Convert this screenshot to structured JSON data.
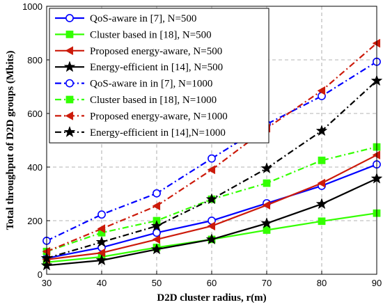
{
  "chart_data": {
    "type": "line",
    "xlabel": "D2D cluster radius, r(m)",
    "ylabel": "Total throughput of D2D groups (Mbits)",
    "xlim": [
      30,
      90
    ],
    "ylim": [
      0,
      1000
    ],
    "x_ticks": [
      30,
      40,
      50,
      60,
      70,
      80,
      90
    ],
    "y_ticks": [
      0,
      200,
      400,
      600,
      800,
      1000
    ],
    "grid": true,
    "legend_position": "top-left",
    "x": [
      30,
      40,
      50,
      60,
      70,
      80,
      90
    ],
    "series": [
      {
        "name": "QoS-aware in [7], N=500",
        "color": "#0000ff",
        "style": "solid",
        "marker": "circle",
        "values": [
          60,
          100,
          155,
          200,
          265,
          330,
          410
        ]
      },
      {
        "name": "Cluster based in [18], N=500",
        "color": "#33ff00",
        "style": "solid",
        "marker": "square",
        "values": [
          45,
          65,
          100,
          130,
          165,
          198,
          228
        ]
      },
      {
        "name": "Proposed energy-aware, N=500",
        "color": "#cc1a0a",
        "style": "solid",
        "marker": "triangle-left",
        "values": [
          55,
          80,
          130,
          180,
          258,
          340,
          445
        ]
      },
      {
        "name": "Energy-efficient in [14], N=500",
        "color": "#000000",
        "style": "solid",
        "marker": "star",
        "values": [
          33,
          52,
          93,
          130,
          190,
          262,
          357
        ]
      },
      {
        "name": "QoS-aware in  in [7], N=1000",
        "color": "#0000ff",
        "style": "dashdot",
        "marker": "circle",
        "values": [
          125,
          223,
          302,
          432,
          560,
          665,
          793
        ]
      },
      {
        "name": "Cluster based in [18], N=1000",
        "color": "#33ff00",
        "style": "dashdot",
        "marker": "square",
        "values": [
          85,
          155,
          200,
          280,
          340,
          425,
          475
        ]
      },
      {
        "name": "Proposed energy-aware,  N=1000",
        "color": "#cc1a0a",
        "style": "dashdot",
        "marker": "triangle-left",
        "values": [
          85,
          170,
          255,
          390,
          545,
          685,
          862
        ]
      },
      {
        "name": "Energy-efficient in [14],N=1000",
        "color": "#000000",
        "style": "dashdot",
        "marker": "star",
        "values": [
          60,
          120,
          180,
          280,
          395,
          535,
          722
        ]
      }
    ]
  }
}
